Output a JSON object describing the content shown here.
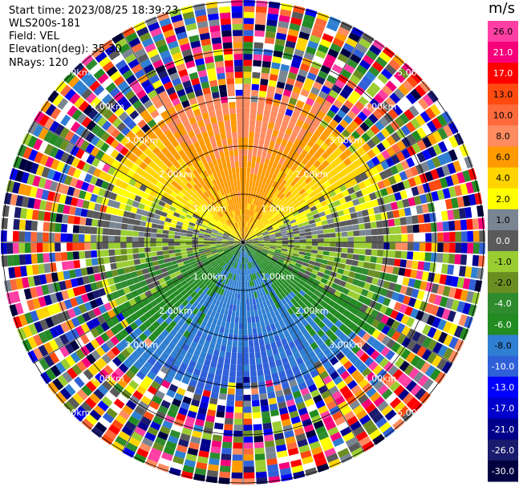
{
  "header": {
    "start_time": "Start time: 2023/08/25 18:39:23",
    "instrument": "WLS200s-181",
    "field": "Field: VEL",
    "elevation": "Elevation(deg): 35.30",
    "nrays": "NRays: 120"
  },
  "chart_data": {
    "type": "heatmap",
    "projection": "polar PPI",
    "field": "VEL",
    "range_rings_km": [
      "1.00km",
      "2.00km",
      "3.00km",
      "4.00km",
      "5.00km"
    ],
    "colorbar": {
      "unit": "m/s",
      "levels": [
        {
          "label": "26.0",
          "color": "#ff3fa4"
        },
        {
          "label": "21.0",
          "color": "#f5007a"
        },
        {
          "label": "17.0",
          "color": "#ff0000"
        },
        {
          "label": "13.0",
          "color": "#ff4a10"
        },
        {
          "label": "10.0",
          "color": "#ff6a3c"
        },
        {
          "label": "8.0",
          "color": "#ff8c60"
        },
        {
          "label": "6.0",
          "color": "#ff9a00"
        },
        {
          "label": "4.0",
          "color": "#ffd400"
        },
        {
          "label": "2.0",
          "color": "#ffff00"
        },
        {
          "label": "1.0",
          "color": "#7a8592"
        },
        {
          "label": "0.0",
          "color": "#5a5a5a"
        },
        {
          "label": "-1.0",
          "color": "#9acd32"
        },
        {
          "label": "-2.0",
          "color": "#6b8e23"
        },
        {
          "label": "-4.0",
          "color": "#2e8b2e"
        },
        {
          "label": "-6.0",
          "color": "#228b22"
        },
        {
          "label": "-8.0",
          "color": "#2f7fd2"
        },
        {
          "label": "-10.0",
          "color": "#3060d8"
        },
        {
          "label": "-13.0",
          "color": "#0000ff"
        },
        {
          "label": "-17.0",
          "color": "#0000cd"
        },
        {
          "label": "-21.0",
          "color": "#00008b"
        },
        {
          "label": "-26.0",
          "color": "#1a1a6e"
        },
        {
          "label": "-30.0",
          "color": "#000040"
        }
      ]
    },
    "grid": true,
    "max_range_km": 5.0
  }
}
